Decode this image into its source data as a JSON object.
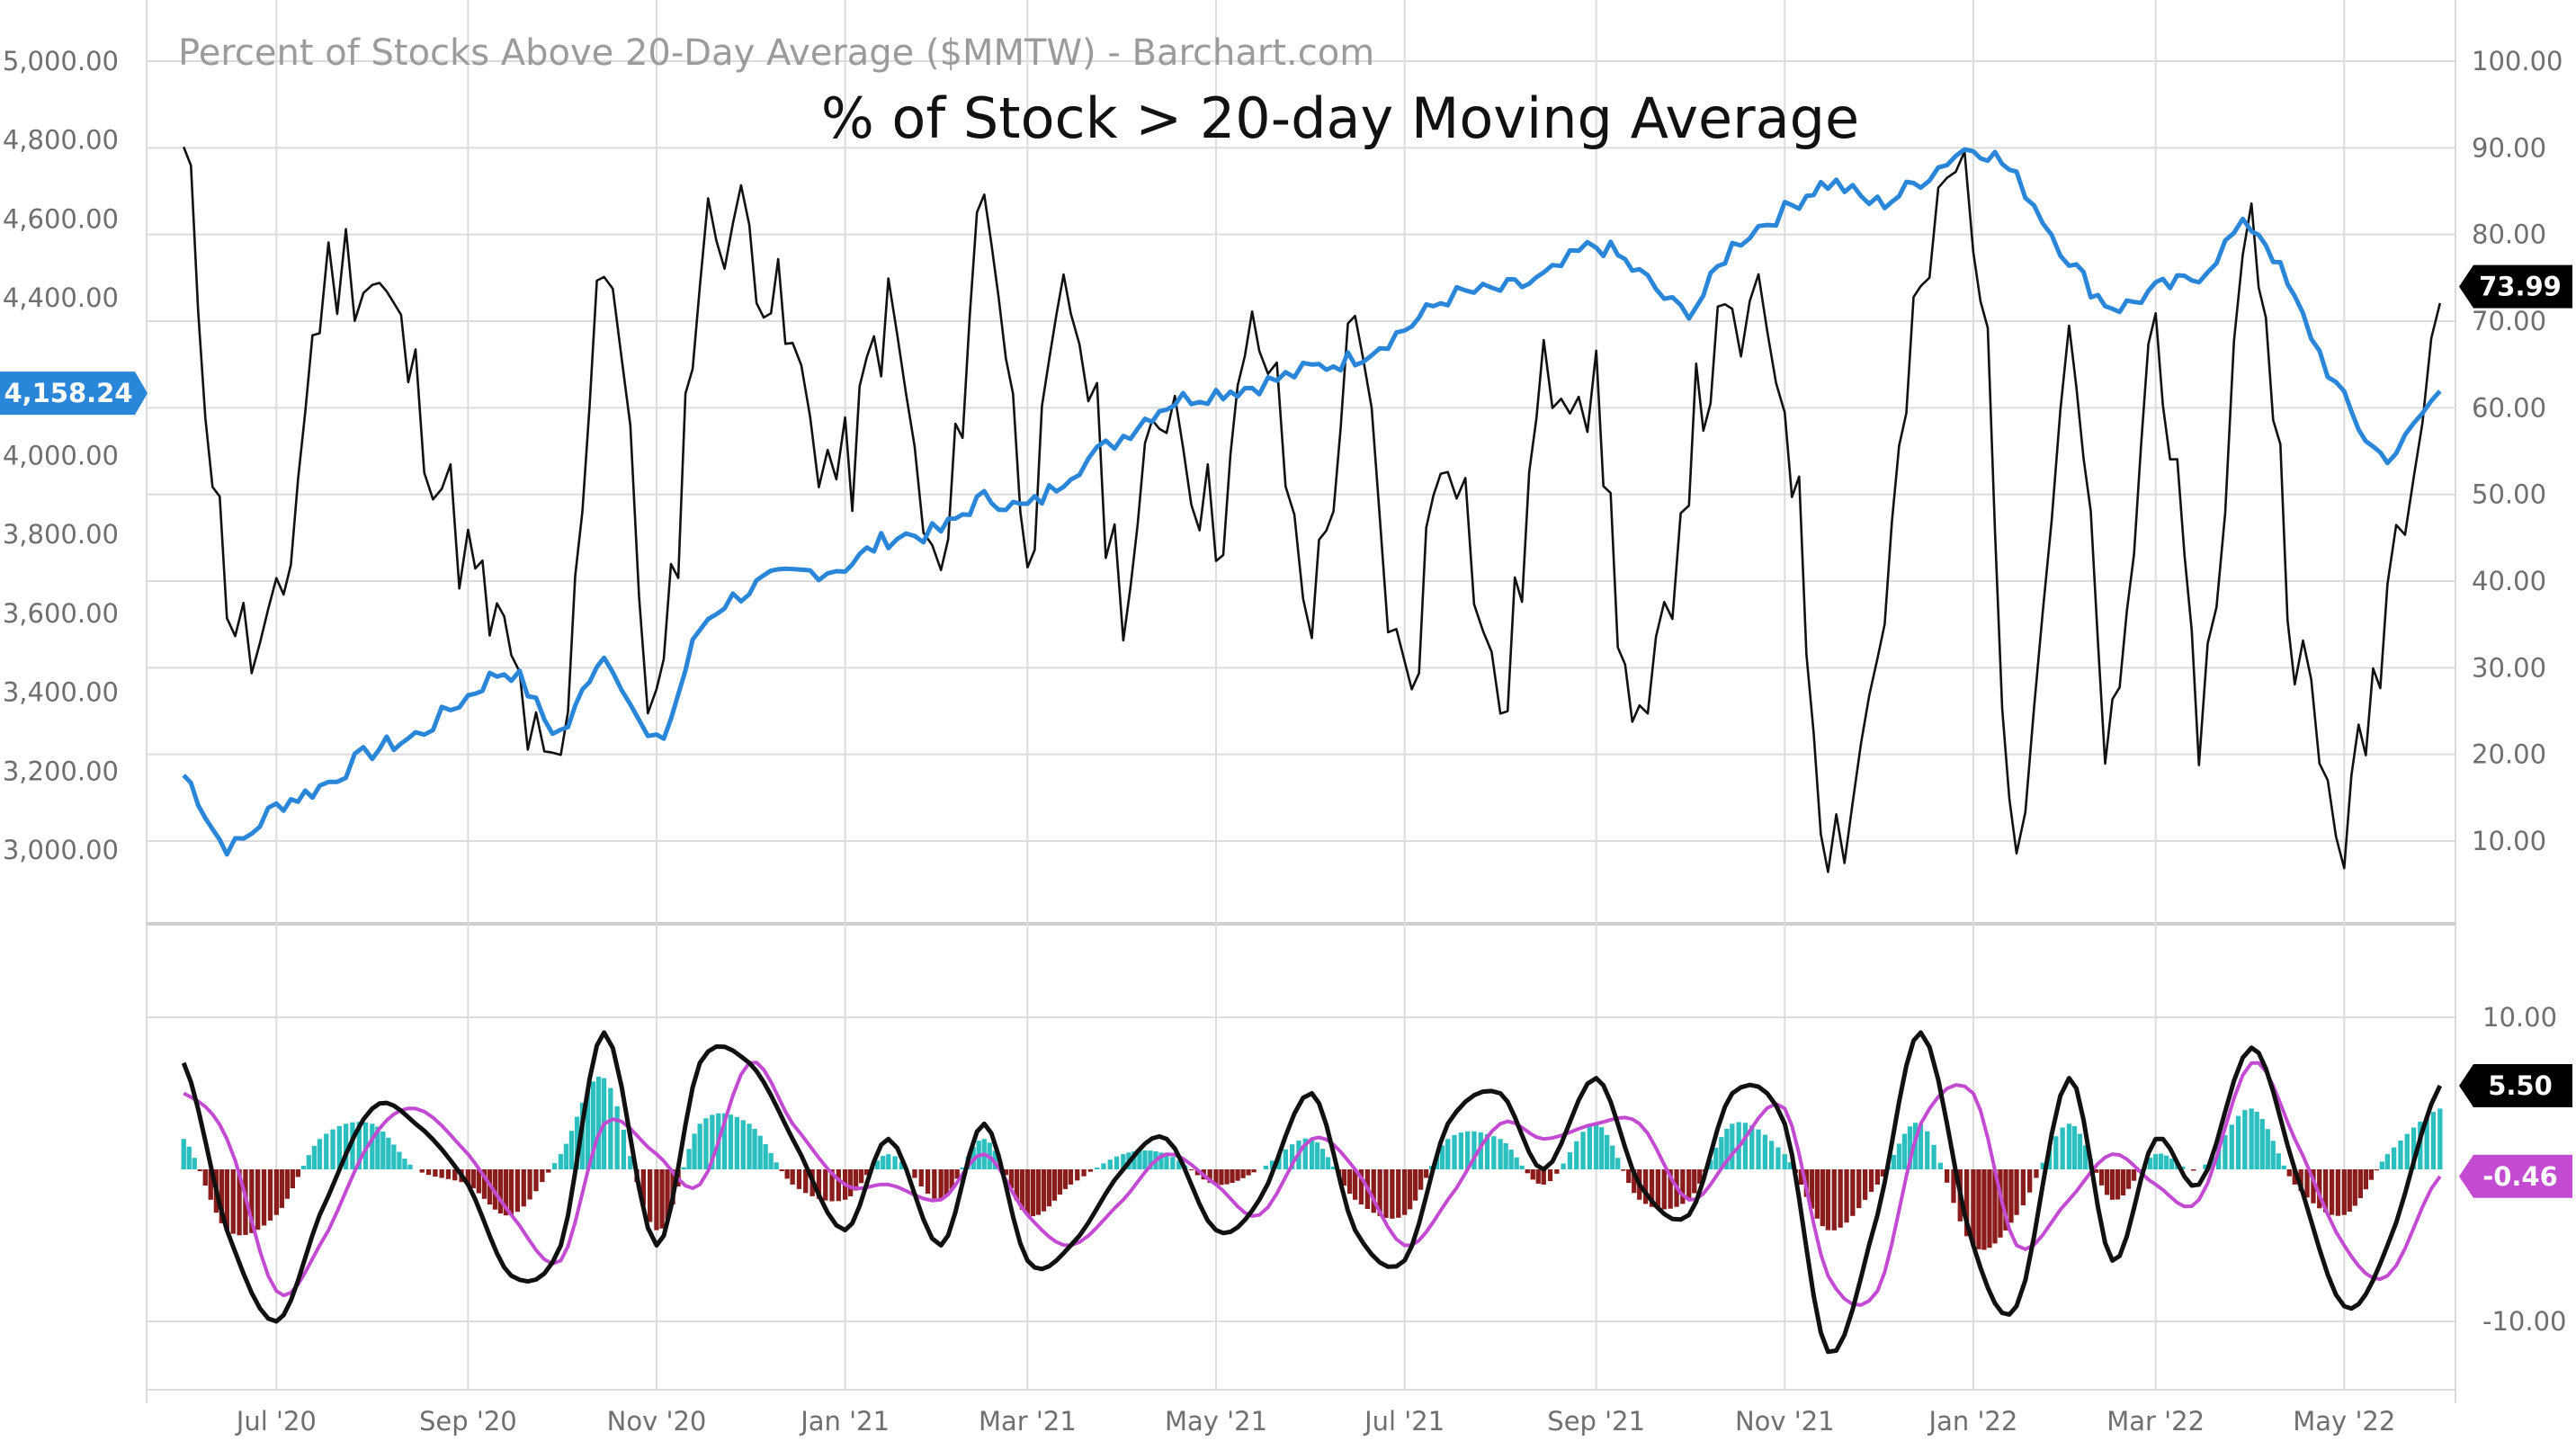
{
  "watermark": "Percent of Stocks Above 20-Day Average ($MMTW) - Barchart.com",
  "title": "% of Stock > 20-day Moving Average",
  "colors": {
    "price": "#2a86d8",
    "breadth": "#111111",
    "signal": "#c24bd2",
    "hist_pos": "#2bbfbf",
    "hist_neg": "#8b1c1c",
    "grid": "#dcdcdc"
  },
  "x_ticks": [
    "Jul '20",
    "Sep '20",
    "Nov '20",
    "Jan '21",
    "Mar '21",
    "May '21",
    "Jul '21",
    "Sep '21",
    "Nov '21",
    "Jan '22",
    "Mar '22",
    "May '22"
  ],
  "left_axis_ticks": [
    "5,000.00",
    "4,800.00",
    "4,600.00",
    "4,400.00",
    "4,000.00",
    "3,800.00",
    "3,600.00",
    "3,400.00",
    "3,200.00",
    "3,000.00"
  ],
  "right_axis_ticks": [
    "100.00",
    "90.00",
    "80.00",
    "70.00",
    "60.00",
    "50.00",
    "40.00",
    "30.00",
    "20.00",
    "10.00"
  ],
  "lower_axis_ticks": [
    "10.00",
    "-10.00"
  ],
  "badges": {
    "price_last": "4,158.24",
    "breadth_last": "73.99",
    "osc_last": "5.50",
    "signal_last": "-0.46"
  },
  "chart_data": [
    {
      "type": "line",
      "panel": "main",
      "x": [
        "2020-06-01",
        "2020-06-15",
        "2020-07-01",
        "2020-07-15",
        "2020-08-01",
        "2020-08-15",
        "2020-09-01",
        "2020-09-15",
        "2020-10-01",
        "2020-10-15",
        "2020-11-01",
        "2020-11-15",
        "2020-12-01",
        "2020-12-15",
        "2021-01-01",
        "2021-01-15",
        "2021-02-01",
        "2021-02-15",
        "2021-03-01",
        "2021-03-15",
        "2021-04-01",
        "2021-04-15",
        "2021-05-01",
        "2021-05-15",
        "2021-06-01",
        "2021-06-15",
        "2021-07-01",
        "2021-07-15",
        "2021-08-01",
        "2021-08-15",
        "2021-09-01",
        "2021-09-15",
        "2021-10-01",
        "2021-10-15",
        "2021-11-01",
        "2021-11-15",
        "2021-12-01",
        "2021-12-15",
        "2022-01-01",
        "2022-01-15",
        "2022-02-01",
        "2022-02-15",
        "2022-03-01",
        "2022-03-15",
        "2022-04-01",
        "2022-04-15",
        "2022-05-01",
        "2022-05-15",
        "2022-06-01"
      ],
      "series": [
        {
          "axis": "left",
          "values": [
            3190,
            3010,
            3110,
            3160,
            3250,
            3290,
            3390,
            3450,
            3300,
            3490,
            3270,
            3560,
            3660,
            3700,
            3720,
            3790,
            3810,
            3890,
            3870,
            3960,
            4050,
            4130,
            4160,
            4180,
            4220,
            4250,
            4320,
            4400,
            4420,
            4450,
            4530,
            4460,
            4370,
            4530,
            4620,
            4690,
            4640,
            4700,
            4780,
            4700,
            4500,
            4380,
            4420,
            4460,
            4580,
            4390,
            4140,
            4000,
            4158
          ]
        },
        {
          "axis": "right",
          "values": [
            88,
            40,
            34,
            72,
            75,
            62,
            42,
            30,
            18,
            79,
            25,
            76,
            80,
            65,
            52,
            70,
            40,
            84,
            48,
            72,
            40,
            62,
            47,
            68,
            38,
            66,
            28,
            58,
            26,
            62,
            60,
            20,
            55,
            68,
            62,
            12,
            32,
            72,
            84,
            15,
            64,
            20,
            70,
            25,
            80,
            35,
            12,
            40,
            74
          ]
        }
      ],
      "ylim_left": [
        2900,
        5050
      ],
      "ylim_right": [
        0,
        100
      ]
    },
    {
      "type": "line",
      "panel": "oscillator",
      "x": [
        "2020-06-01",
        "2020-06-15",
        "2020-07-01",
        "2020-07-15",
        "2020-08-01",
        "2020-08-15",
        "2020-09-01",
        "2020-09-15",
        "2020-10-01",
        "2020-10-15",
        "2020-11-01",
        "2020-11-15",
        "2020-12-01",
        "2020-12-15",
        "2021-01-01",
        "2021-01-15",
        "2021-02-01",
        "2021-02-15",
        "2021-03-01",
        "2021-03-15",
        "2021-04-01",
        "2021-04-15",
        "2021-05-01",
        "2021-05-15",
        "2021-06-01",
        "2021-06-15",
        "2021-07-01",
        "2021-07-15",
        "2021-08-01",
        "2021-08-15",
        "2021-09-01",
        "2021-09-15",
        "2021-10-01",
        "2021-10-15",
        "2021-11-01",
        "2021-11-15",
        "2021-12-01",
        "2021-12-15",
        "2022-01-01",
        "2022-01-15",
        "2022-02-01",
        "2022-02-15",
        "2022-03-01",
        "2022-03-15",
        "2022-04-01",
        "2022-04-15",
        "2022-05-01",
        "2022-05-15",
        "2022-06-01"
      ],
      "series": [
        {
          "values": [
            7,
            -4,
            -10,
            -3,
            4,
            3,
            -1,
            -7,
            -5,
            9,
            -5,
            7,
            7,
            2,
            -4,
            2,
            -5,
            3,
            -6,
            -5,
            0,
            2,
            -4,
            -2,
            5,
            -4,
            -6,
            3,
            5,
            0,
            6,
            -1,
            -3,
            5,
            3,
            -12,
            -3,
            9,
            -5,
            -9,
            6,
            -6,
            2,
            -1,
            8,
            0,
            -9,
            -5,
            5.5
          ]
        },
        {
          "values": [
            5,
            2,
            -8,
            -5,
            2,
            4,
            1,
            -3,
            -6,
            3,
            1,
            -1,
            7,
            3,
            -1,
            -1,
            -2,
            1,
            -3,
            -5,
            -2,
            1,
            -1,
            -3,
            2,
            0,
            -5,
            -2,
            3,
            2,
            3,
            3,
            -2,
            1,
            4,
            -7,
            -8,
            3,
            5,
            -5,
            -2,
            1,
            -1,
            -2,
            7,
            2,
            -5,
            -7,
            -0.46
          ]
        },
        {
          "values": [
            2,
            -4,
            -3,
            2,
            3,
            0,
            -1,
            -3,
            1,
            6,
            -4,
            3,
            3,
            -1,
            -2,
            1,
            -2,
            2,
            -3,
            -1,
            1,
            1,
            -1,
            0,
            2,
            -2,
            -3,
            2,
            2,
            -1,
            3,
            -2,
            -2,
            3,
            1,
            -4,
            -1,
            3,
            -5,
            -3,
            3,
            -2,
            1,
            0,
            4,
            -1,
            -3,
            1,
            4
          ]
        }
      ],
      "ylim": [
        -13,
        11
      ]
    }
  ]
}
